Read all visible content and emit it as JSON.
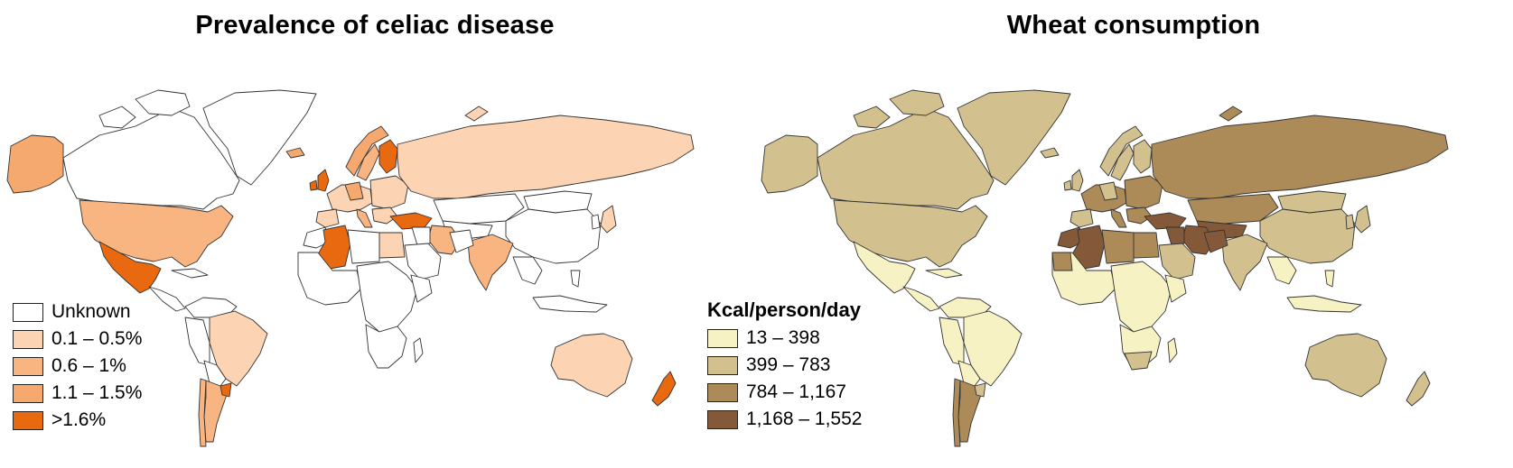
{
  "colors": {
    "celiac": {
      "unknown": "#ffffff",
      "low": "#fcd3b3",
      "mid": "#f8b582",
      "high": "#f6a96e",
      "top": "#e8690f"
    },
    "wheat": {
      "c1": "#f7f2c4",
      "c2": "#d2c18e",
      "c3": "#ad8b59",
      "c4": "#83593a"
    },
    "border": "#333333"
  },
  "left_map": {
    "title": "Prevalence of celiac disease",
    "legend": [
      {
        "label": "Unknown",
        "color": "#ffffff"
      },
      {
        "label": "0.1 – 0.5%",
        "color": "#fcd3b3"
      },
      {
        "label": "0.6 – 1%",
        "color": "#f8b582"
      },
      {
        "label": "1.1 – 1.5%",
        "color": "#f6a96e"
      },
      {
        "label": ">1.6%",
        "color": "#e8690f"
      }
    ]
  },
  "right_map": {
    "title": "Wheat consumption",
    "legend_title": "Kcal/person/day",
    "legend": [
      {
        "label": "13 – 398",
        "color": "#f7f2c4"
      },
      {
        "label": "399 – 783",
        "color": "#d2c18e"
      },
      {
        "label": "784 – 1,167",
        "color": "#ad8b59"
      },
      {
        "label": "1,168 – 1,552",
        "color": "#83593a"
      }
    ]
  }
}
